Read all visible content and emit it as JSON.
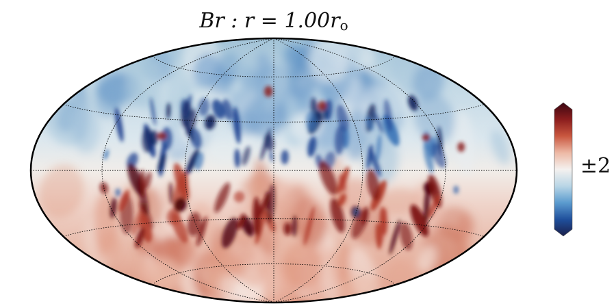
{
  "chart_data": {
    "type": "heatmap",
    "projection": "Hammer-Aitoff (Mollweide-like) full-sphere map",
    "title": "Br : r = 1.00r₀",
    "title_parts": {
      "main": "Br : r = 1.00r",
      "sub": "o"
    },
    "field": "Br",
    "radius_label": "r = 1.00 r_o",
    "colorbar": {
      "label": "±2",
      "range": [
        -2,
        2
      ],
      "colormap": "diverging blue-white-red (RdBu_r style)",
      "extend": "both",
      "colors": [
        "#1b1f4b",
        "#1f4f9c",
        "#5b9bcf",
        "#b9d6e6",
        "#f4f1ef",
        "#edb9a5",
        "#c9573f",
        "#8b1d1d",
        "#3b0712"
      ]
    },
    "structure": {
      "northern_hemisphere": "predominantly negative (blue), strongest patches near equator",
      "southern_hemisphere": "predominantly positive (red), strongest patches near equator"
    },
    "grid": {
      "parallels_deg": [
        -60,
        -30,
        0,
        30,
        60
      ],
      "meridians_deg": [
        -120,
        -60,
        0,
        60,
        120
      ],
      "style": "dotted black"
    }
  }
}
